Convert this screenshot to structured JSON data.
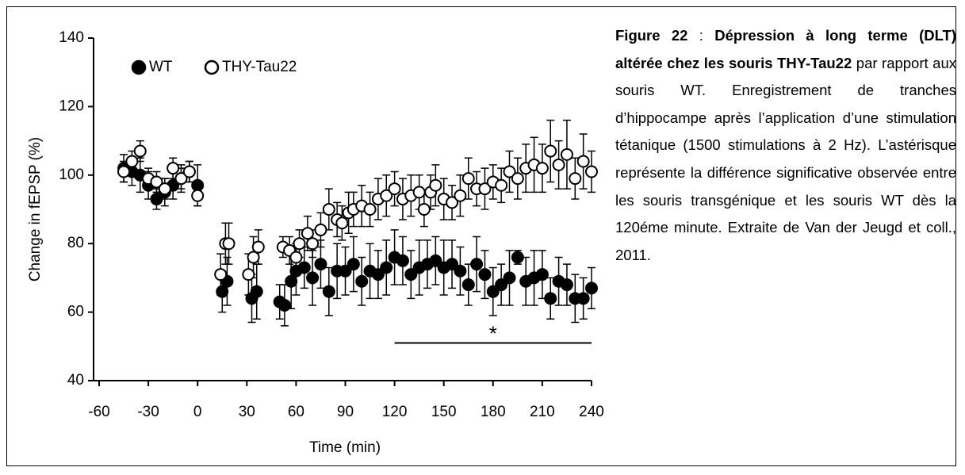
{
  "chart_data": {
    "type": "scatter",
    "xlabel": "Time (min)",
    "ylabel": "Change in fEPSP (%)",
    "xlim": [
      -60,
      240
    ],
    "xticks": [
      -60,
      -30,
      0,
      30,
      60,
      90,
      120,
      150,
      180,
      210,
      240
    ],
    "ylim": [
      40,
      140
    ],
    "yticks": [
      40,
      60,
      80,
      100,
      120,
      140
    ],
    "legend": "upper left",
    "series": [
      {
        "name": "WT",
        "color": "#000000",
        "marker": "filled",
        "x": [
          -45,
          -40,
          -35,
          -30,
          -25,
          -20,
          -15,
          -10,
          -5,
          0,
          15,
          18,
          33,
          36,
          50,
          53,
          57,
          60,
          65,
          70,
          75,
          80,
          85,
          90,
          95,
          100,
          105,
          110,
          115,
          120,
          125,
          130,
          135,
          140,
          145,
          150,
          155,
          160,
          165,
          170,
          175,
          180,
          185,
          190,
          195,
          200,
          205,
          210,
          215,
          220,
          225,
          230,
          235,
          240
        ],
        "values": [
          102,
          101,
          100,
          97,
          93,
          95,
          97,
          99,
          101,
          97,
          66,
          69,
          64,
          66,
          63,
          62,
          69,
          72,
          73,
          70,
          74,
          66,
          72,
          72,
          74,
          69,
          72,
          71,
          73,
          76,
          75,
          71,
          73,
          74,
          75,
          73,
          74,
          72,
          68,
          74,
          71,
          66,
          68,
          70,
          76,
          69,
          70,
          71,
          64,
          69,
          68,
          64,
          64,
          67
        ],
        "errors": [
          4,
          4,
          5,
          4,
          3,
          4,
          4,
          4,
          3,
          6,
          6,
          7,
          7,
          8,
          5,
          6,
          8,
          7,
          6,
          8,
          7,
          7,
          8,
          7,
          8,
          7,
          8,
          7,
          8,
          8,
          7,
          7,
          8,
          7,
          7,
          8,
          7,
          7,
          6,
          8,
          7,
          7,
          6,
          8,
          2,
          7,
          8,
          7,
          6,
          7,
          6,
          7,
          6,
          6
        ]
      },
      {
        "name": "THY-Tau22",
        "color": "#000000",
        "marker": "open",
        "x": [
          -45,
          -40,
          -35,
          -30,
          -25,
          -20,
          -15,
          -10,
          -5,
          0,
          14,
          17,
          19,
          31,
          34,
          37,
          52,
          56,
          60,
          62,
          67,
          70,
          75,
          80,
          85,
          88,
          92,
          95,
          100,
          105,
          110,
          115,
          120,
          125,
          130,
          135,
          138,
          142,
          145,
          150,
          155,
          160,
          165,
          170,
          175,
          180,
          185,
          190,
          195,
          200,
          205,
          210,
          215,
          220,
          225,
          230,
          235,
          240
        ],
        "values": [
          101,
          104,
          107,
          99,
          98,
          96,
          102,
          99,
          101,
          94,
          71,
          80,
          80,
          71,
          76,
          79,
          79,
          78,
          76,
          80,
          83,
          80,
          84,
          90,
          87,
          86,
          89,
          90,
          91,
          90,
          93,
          94,
          96,
          93,
          94,
          95,
          90,
          95,
          97,
          93,
          92,
          94,
          99,
          96,
          96,
          98,
          97,
          101,
          99,
          102,
          103,
          102,
          107,
          103,
          106,
          99,
          104,
          101
        ],
        "errors": [
          3,
          3,
          3,
          3,
          3,
          3,
          3,
          3,
          3,
          3,
          6,
          6,
          6,
          6,
          6,
          5,
          3,
          4,
          4,
          4,
          5,
          4,
          5,
          6,
          5,
          5,
          6,
          5,
          6,
          5,
          6,
          6,
          5,
          6,
          6,
          5,
          5,
          5,
          6,
          6,
          5,
          6,
          6,
          5,
          6,
          5,
          5,
          6,
          6,
          7,
          8,
          7,
          9,
          7,
          10,
          6,
          8,
          6
        ]
      }
    ],
    "annotation": {
      "text": "*",
      "x": [
        120,
        240
      ],
      "y": 51
    }
  },
  "caption": {
    "label": "Figure 22",
    "separator": " : ",
    "bold": "Dépression à long terme (DLT) altérée chez les souris THY-Tau22",
    "text": " par rapport aux souris WT. Enregistrement de tranches d’hippocampe après l’application d’une stimulation tétanique (1500 stimulations à 2 Hz). L’astérisque représente la différence significative observée entre les souris transgénique et les souris WT dès la 120éme minute. Extraite de Van der Jeugd et coll., 2011."
  }
}
